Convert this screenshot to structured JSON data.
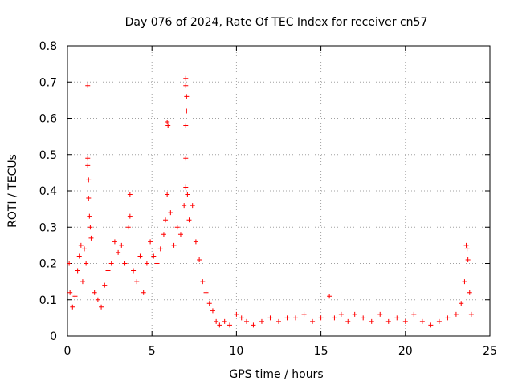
{
  "chart_data": {
    "type": "scatter",
    "title": "Day 076 of 2024, Rate Of TEC Index for receiver cn57",
    "xlabel": "GPS time / hours",
    "ylabel": "ROTI / TECUs",
    "xlim": [
      0,
      25
    ],
    "ylim": [
      0,
      0.8
    ],
    "xticks": [
      0,
      5,
      10,
      15,
      20,
      25
    ],
    "yticks": [
      0,
      0.1,
      0.2,
      0.3,
      0.4,
      0.5,
      0.6,
      0.7,
      0.8
    ],
    "xtick_labels": [
      "0",
      "5",
      "10",
      "15",
      "20",
      "25"
    ],
    "ytick_labels": [
      "0",
      "0.1",
      "0.2",
      "0.3",
      "0.4",
      "0.5",
      "0.6",
      "0.7",
      "0.8"
    ],
    "grid": true,
    "marker": "+",
    "color": "#ff0000",
    "series": [
      {
        "points": [
          [
            0.1,
            0.2
          ],
          [
            0.15,
            0.12
          ],
          [
            0.3,
            0.08
          ],
          [
            0.45,
            0.11
          ],
          [
            0.6,
            0.18
          ],
          [
            0.7,
            0.22
          ],
          [
            0.8,
            0.25
          ],
          [
            0.9,
            0.15
          ],
          [
            1.0,
            0.24
          ],
          [
            1.1,
            0.2
          ],
          [
            1.2,
            0.69
          ],
          [
            1.2,
            0.49
          ],
          [
            1.2,
            0.47
          ],
          [
            1.25,
            0.43
          ],
          [
            1.25,
            0.38
          ],
          [
            1.3,
            0.33
          ],
          [
            1.35,
            0.3
          ],
          [
            1.4,
            0.27
          ],
          [
            1.6,
            0.12
          ],
          [
            1.8,
            0.1
          ],
          [
            2.0,
            0.08
          ],
          [
            2.2,
            0.14
          ],
          [
            2.4,
            0.18
          ],
          [
            2.6,
            0.2
          ],
          [
            2.8,
            0.26
          ],
          [
            3.0,
            0.23
          ],
          [
            3.2,
            0.25
          ],
          [
            3.4,
            0.2
          ],
          [
            3.6,
            0.3
          ],
          [
            3.7,
            0.39
          ],
          [
            3.7,
            0.33
          ],
          [
            3.9,
            0.18
          ],
          [
            4.1,
            0.15
          ],
          [
            4.3,
            0.22
          ],
          [
            4.5,
            0.12
          ],
          [
            4.7,
            0.2
          ],
          [
            4.9,
            0.26
          ],
          [
            5.1,
            0.22
          ],
          [
            5.3,
            0.2
          ],
          [
            5.5,
            0.24
          ],
          [
            5.7,
            0.28
          ],
          [
            5.8,
            0.32
          ],
          [
            5.9,
            0.59
          ],
          [
            5.95,
            0.58
          ],
          [
            5.9,
            0.39
          ],
          [
            6.1,
            0.34
          ],
          [
            6.3,
            0.25
          ],
          [
            6.5,
            0.3
          ],
          [
            6.7,
            0.28
          ],
          [
            6.9,
            0.36
          ],
          [
            7.0,
            0.71
          ],
          [
            7.0,
            0.69
          ],
          [
            7.05,
            0.66
          ],
          [
            7.05,
            0.62
          ],
          [
            7.0,
            0.58
          ],
          [
            7.0,
            0.49
          ],
          [
            7.0,
            0.41
          ],
          [
            7.1,
            0.39
          ],
          [
            7.2,
            0.32
          ],
          [
            7.4,
            0.36
          ],
          [
            7.6,
            0.26
          ],
          [
            7.8,
            0.21
          ],
          [
            8.0,
            0.15
          ],
          [
            8.2,
            0.12
          ],
          [
            8.4,
            0.09
          ],
          [
            8.6,
            0.07
          ],
          [
            8.8,
            0.04
          ],
          [
            9.0,
            0.03
          ],
          [
            9.3,
            0.04
          ],
          [
            9.6,
            0.03
          ],
          [
            10.0,
            0.06
          ],
          [
            10.3,
            0.05
          ],
          [
            10.6,
            0.04
          ],
          [
            11.0,
            0.03
          ],
          [
            11.5,
            0.04
          ],
          [
            12.0,
            0.05
          ],
          [
            12.5,
            0.04
          ],
          [
            13.0,
            0.05
          ],
          [
            13.5,
            0.05
          ],
          [
            14.0,
            0.06
          ],
          [
            14.5,
            0.04
          ],
          [
            15.0,
            0.05
          ],
          [
            15.5,
            0.11
          ],
          [
            15.8,
            0.05
          ],
          [
            16.2,
            0.06
          ],
          [
            16.6,
            0.04
          ],
          [
            17.0,
            0.06
          ],
          [
            17.5,
            0.05
          ],
          [
            18.0,
            0.04
          ],
          [
            18.5,
            0.06
          ],
          [
            19.0,
            0.04
          ],
          [
            19.5,
            0.05
          ],
          [
            20.0,
            0.04
          ],
          [
            20.5,
            0.06
          ],
          [
            21.0,
            0.04
          ],
          [
            21.5,
            0.03
          ],
          [
            22.0,
            0.04
          ],
          [
            22.5,
            0.05
          ],
          [
            23.0,
            0.06
          ],
          [
            23.3,
            0.09
          ],
          [
            23.5,
            0.15
          ],
          [
            23.6,
            0.25
          ],
          [
            23.65,
            0.24
          ],
          [
            23.7,
            0.21
          ],
          [
            23.8,
            0.12
          ],
          [
            23.9,
            0.06
          ]
        ]
      }
    ]
  }
}
